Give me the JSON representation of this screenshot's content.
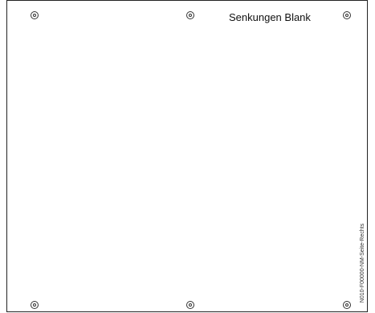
{
  "title": "Senkungen Blank",
  "side_code": "N010-F00000-NM-Seite-Rechts",
  "colors": {
    "line": "#222222",
    "text": "#111111",
    "background": "#ffffff"
  },
  "icons": {
    "countersink_hole": "double-circle"
  }
}
